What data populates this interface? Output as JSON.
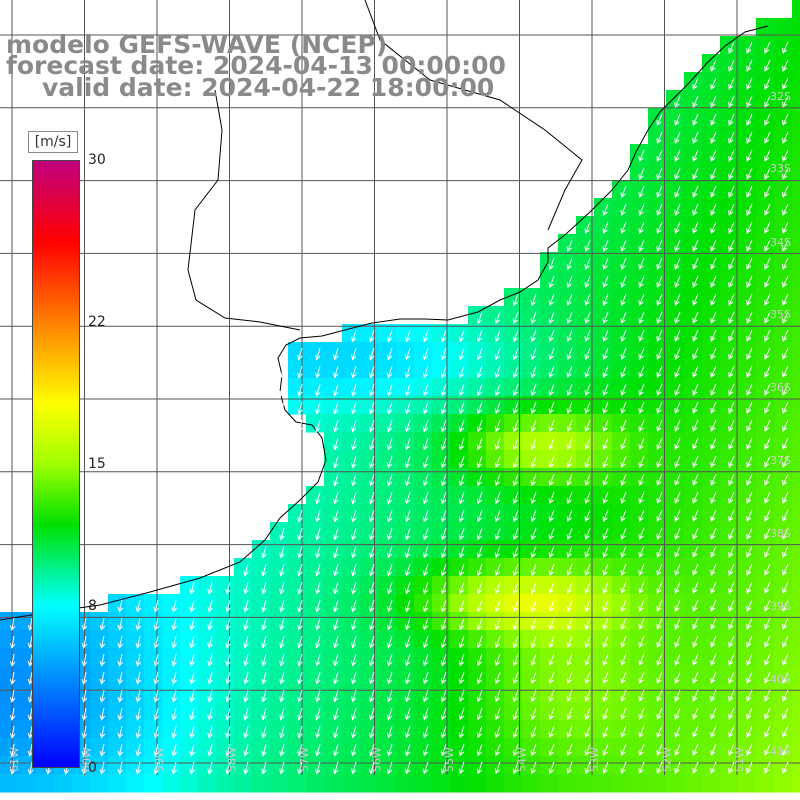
{
  "title": {
    "model": "modelo GEFS-WAVE (NCEP)",
    "forecast": "forecast date: 2024-04-13 00:00:00",
    "valid": "valid date: 2024-04-22 18:00:00"
  },
  "colorbar": {
    "unit": "[m/s]",
    "ticks": [
      "30",
      "22",
      "15",
      "8",
      "0"
    ],
    "tick_values": [
      30,
      22,
      15,
      8,
      0
    ],
    "stops": [
      {
        "v": 0,
        "c": "#0000ff"
      },
      {
        "v": 4,
        "c": "#0080ff"
      },
      {
        "v": 8,
        "c": "#00ffff"
      },
      {
        "v": 12,
        "c": "#00e000"
      },
      {
        "v": 15,
        "c": "#a0ff00"
      },
      {
        "v": 18,
        "c": "#ffff00"
      },
      {
        "v": 22,
        "c": "#ff8000"
      },
      {
        "v": 26,
        "c": "#ff0000"
      },
      {
        "v": 30,
        "c": "#c0007f"
      }
    ]
  },
  "lat_labels": [
    "32S",
    "33S",
    "34S",
    "35S",
    "36S",
    "37S",
    "38S",
    "39S",
    "40S",
    "41S"
  ],
  "lon_labels": [
    "61W",
    "60W",
    "59W",
    "58W",
    "57W",
    "56W",
    "55W",
    "54W",
    "53W",
    "52W",
    "51W"
  ],
  "colors": {
    "grid": "#555555",
    "coast": "#000000",
    "arrow": "#ffffff",
    "land": "#ffffff",
    "title": "#8a8a8a"
  }
}
